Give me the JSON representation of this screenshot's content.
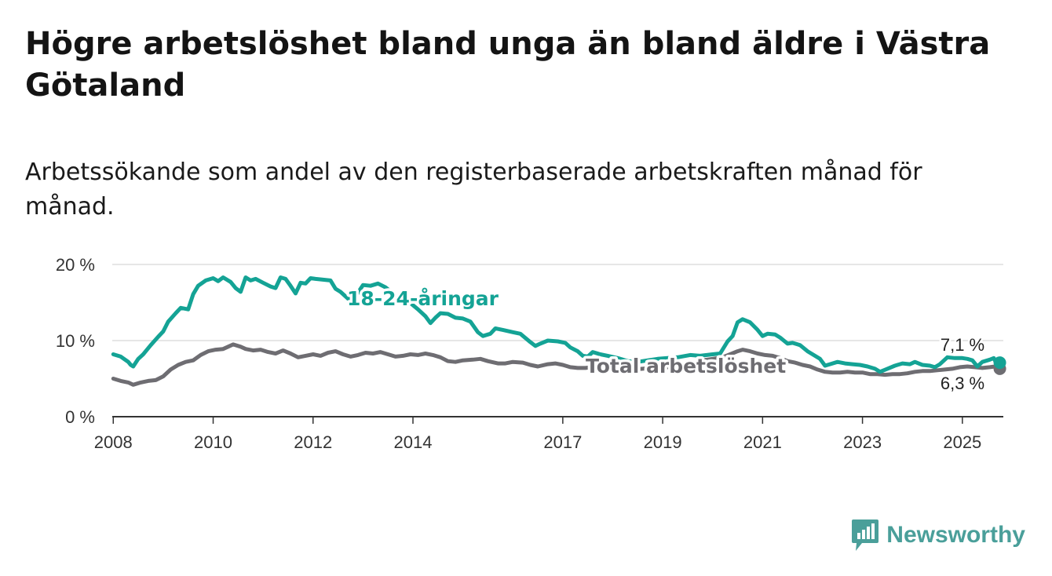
{
  "header": {
    "title": "Högre arbetslöshet bland unga än bland äldre i Västra Götaland",
    "subtitle": "Arbetssökande som andel av den registerbaserade arbetskraften månad för månad."
  },
  "brand": {
    "name": "Newsworthy",
    "icon": "newsworthy-logo-icon",
    "color": "#4a9f9a"
  },
  "chart_data": {
    "type": "line",
    "title": "Högre arbetslöshet bland unga än bland äldre i Västra Götaland",
    "subtitle": "Arbetssökande som andel av den registerbaserade arbetskraften månad för månad.",
    "xlabel": "",
    "ylabel": "",
    "xlim": [
      2007.98,
      2025.82
    ],
    "ylim": [
      0,
      20
    ],
    "x_ticks": [
      2008,
      2010,
      2012,
      2014,
      2017,
      2019,
      2021,
      2023,
      2025
    ],
    "x_tick_labels": [
      "2008",
      "2010",
      "2012",
      "2014",
      "2017",
      "2019",
      "2021",
      "2023",
      "2025"
    ],
    "y_ticks": [
      0,
      10,
      20
    ],
    "y_tick_labels": [
      "0 %",
      "10 %",
      "20 %"
    ],
    "grid": true,
    "series": [
      {
        "name": "18-24-åringar",
        "label": "18-24-åringar",
        "color": "#14a395",
        "end_label": "7,1 %",
        "points": [
          [
            2008.0,
            8.2
          ],
          [
            2008.15,
            7.9
          ],
          [
            2008.3,
            7.2
          ],
          [
            2008.35,
            6.8
          ],
          [
            2008.4,
            6.6
          ],
          [
            2008.5,
            7.6
          ],
          [
            2008.6,
            8.2
          ],
          [
            2008.75,
            9.4
          ],
          [
            2008.9,
            10.5
          ],
          [
            2009.0,
            11.2
          ],
          [
            2009.1,
            12.5
          ],
          [
            2009.25,
            13.6
          ],
          [
            2009.35,
            14.3
          ],
          [
            2009.5,
            14.1
          ],
          [
            2009.6,
            16.1
          ],
          [
            2009.7,
            17.2
          ],
          [
            2009.85,
            17.9
          ],
          [
            2010.0,
            18.2
          ],
          [
            2010.1,
            17.8
          ],
          [
            2010.2,
            18.3
          ],
          [
            2010.35,
            17.7
          ],
          [
            2010.45,
            16.9
          ],
          [
            2010.55,
            16.4
          ],
          [
            2010.65,
            18.3
          ],
          [
            2010.75,
            17.9
          ],
          [
            2010.85,
            18.1
          ],
          [
            2011.0,
            17.6
          ],
          [
            2011.15,
            17.1
          ],
          [
            2011.25,
            16.9
          ],
          [
            2011.35,
            18.3
          ],
          [
            2011.45,
            18.1
          ],
          [
            2011.55,
            17.2
          ],
          [
            2011.65,
            16.2
          ],
          [
            2011.75,
            17.6
          ],
          [
            2011.85,
            17.5
          ],
          [
            2011.95,
            18.2
          ],
          [
            2012.05,
            18.1
          ],
          [
            2012.2,
            18.0
          ],
          [
            2012.35,
            17.9
          ],
          [
            2012.45,
            16.8
          ],
          [
            2012.55,
            16.4
          ],
          [
            2012.7,
            15.5
          ],
          [
            2012.85,
            15.8
          ],
          [
            2013.0,
            17.3
          ],
          [
            2013.15,
            17.2
          ],
          [
            2013.3,
            17.5
          ],
          [
            2013.45,
            17.0
          ],
          [
            2013.6,
            16.2
          ],
          [
            2013.75,
            15.0
          ],
          [
            2013.9,
            15.2
          ],
          [
            2014.1,
            14.1
          ],
          [
            2014.25,
            13.2
          ],
          [
            2014.35,
            12.3
          ],
          [
            2014.45,
            13.0
          ],
          [
            2014.55,
            13.6
          ],
          [
            2014.7,
            13.5
          ],
          [
            2014.85,
            13.0
          ],
          [
            2015.0,
            12.9
          ],
          [
            2015.15,
            12.5
          ],
          [
            2015.3,
            11.1
          ],
          [
            2015.4,
            10.6
          ],
          [
            2015.55,
            10.9
          ],
          [
            2015.65,
            11.6
          ],
          [
            2015.8,
            11.4
          ],
          [
            2016.0,
            11.1
          ],
          [
            2016.15,
            10.9
          ],
          [
            2016.35,
            9.8
          ],
          [
            2016.45,
            9.3
          ],
          [
            2016.55,
            9.6
          ],
          [
            2016.7,
            10.0
          ],
          [
            2016.9,
            9.9
          ],
          [
            2017.05,
            9.7
          ],
          [
            2017.15,
            9.1
          ],
          [
            2017.3,
            8.6
          ],
          [
            2017.4,
            8.0
          ],
          [
            2017.5,
            7.9
          ],
          [
            2017.6,
            8.5
          ],
          [
            2017.75,
            8.2
          ],
          [
            2017.9,
            8.0
          ],
          [
            2018.1,
            7.7
          ],
          [
            2018.3,
            7.3
          ],
          [
            2018.5,
            7.2
          ],
          [
            2018.7,
            7.4
          ],
          [
            2018.9,
            7.6
          ],
          [
            2019.1,
            7.7
          ],
          [
            2019.3,
            7.8
          ],
          [
            2019.55,
            8.1
          ],
          [
            2019.75,
            8.0
          ],
          [
            2020.0,
            8.2
          ],
          [
            2020.15,
            8.3
          ],
          [
            2020.3,
            9.9
          ],
          [
            2020.4,
            10.6
          ],
          [
            2020.5,
            12.4
          ],
          [
            2020.6,
            12.8
          ],
          [
            2020.75,
            12.4
          ],
          [
            2020.9,
            11.4
          ],
          [
            2021.0,
            10.6
          ],
          [
            2021.1,
            10.9
          ],
          [
            2021.25,
            10.8
          ],
          [
            2021.35,
            10.4
          ],
          [
            2021.5,
            9.6
          ],
          [
            2021.6,
            9.7
          ],
          [
            2021.75,
            9.4
          ],
          [
            2021.9,
            8.6
          ],
          [
            2022.05,
            8.0
          ],
          [
            2022.15,
            7.6
          ],
          [
            2022.25,
            6.7
          ],
          [
            2022.35,
            6.9
          ],
          [
            2022.5,
            7.2
          ],
          [
            2022.65,
            7.0
          ],
          [
            2022.8,
            6.9
          ],
          [
            2022.95,
            6.8
          ],
          [
            2023.1,
            6.6
          ],
          [
            2023.25,
            6.3
          ],
          [
            2023.35,
            5.9
          ],
          [
            2023.5,
            6.3
          ],
          [
            2023.65,
            6.7
          ],
          [
            2023.8,
            7.0
          ],
          [
            2023.95,
            6.9
          ],
          [
            2024.05,
            7.2
          ],
          [
            2024.2,
            6.8
          ],
          [
            2024.35,
            6.7
          ],
          [
            2024.45,
            6.5
          ],
          [
            2024.55,
            6.9
          ],
          [
            2024.7,
            7.8
          ],
          [
            2024.85,
            7.7
          ],
          [
            2025.0,
            7.7
          ],
          [
            2025.1,
            7.6
          ],
          [
            2025.2,
            7.4
          ],
          [
            2025.3,
            6.6
          ],
          [
            2025.4,
            7.2
          ],
          [
            2025.55,
            7.5
          ],
          [
            2025.63,
            7.7
          ],
          [
            2025.7,
            6.7
          ],
          [
            2025.75,
            7.1
          ]
        ]
      },
      {
        "name": "Total arbetslöshet",
        "label": "Total arbetslöshet",
        "color": "#6e6d72",
        "end_label": "6,3 %",
        "points": [
          [
            2008.0,
            5.0
          ],
          [
            2008.15,
            4.7
          ],
          [
            2008.3,
            4.5
          ],
          [
            2008.4,
            4.2
          ],
          [
            2008.55,
            4.5
          ],
          [
            2008.7,
            4.7
          ],
          [
            2008.85,
            4.8
          ],
          [
            2009.0,
            5.3
          ],
          [
            2009.15,
            6.2
          ],
          [
            2009.3,
            6.8
          ],
          [
            2009.45,
            7.2
          ],
          [
            2009.6,
            7.4
          ],
          [
            2009.75,
            8.1
          ],
          [
            2009.9,
            8.6
          ],
          [
            2010.05,
            8.8
          ],
          [
            2010.2,
            8.9
          ],
          [
            2010.3,
            9.2
          ],
          [
            2010.4,
            9.5
          ],
          [
            2010.55,
            9.2
          ],
          [
            2010.65,
            8.9
          ],
          [
            2010.8,
            8.7
          ],
          [
            2010.95,
            8.8
          ],
          [
            2011.1,
            8.5
          ],
          [
            2011.25,
            8.3
          ],
          [
            2011.4,
            8.7
          ],
          [
            2011.55,
            8.3
          ],
          [
            2011.7,
            7.8
          ],
          [
            2011.85,
            8.0
          ],
          [
            2012.0,
            8.2
          ],
          [
            2012.15,
            8.0
          ],
          [
            2012.3,
            8.4
          ],
          [
            2012.45,
            8.6
          ],
          [
            2012.6,
            8.2
          ],
          [
            2012.75,
            7.9
          ],
          [
            2012.9,
            8.1
          ],
          [
            2013.05,
            8.4
          ],
          [
            2013.2,
            8.3
          ],
          [
            2013.35,
            8.5
          ],
          [
            2013.5,
            8.2
          ],
          [
            2013.65,
            7.9
          ],
          [
            2013.8,
            8.0
          ],
          [
            2013.95,
            8.2
          ],
          [
            2014.1,
            8.1
          ],
          [
            2014.25,
            8.3
          ],
          [
            2014.4,
            8.1
          ],
          [
            2014.55,
            7.8
          ],
          [
            2014.7,
            7.3
          ],
          [
            2014.85,
            7.2
          ],
          [
            2015.0,
            7.4
          ],
          [
            2015.2,
            7.5
          ],
          [
            2015.35,
            7.6
          ],
          [
            2015.5,
            7.3
          ],
          [
            2015.7,
            7.0
          ],
          [
            2015.85,
            7.0
          ],
          [
            2016.0,
            7.2
          ],
          [
            2016.2,
            7.1
          ],
          [
            2016.35,
            6.8
          ],
          [
            2016.5,
            6.6
          ],
          [
            2016.7,
            6.9
          ],
          [
            2016.85,
            7.0
          ],
          [
            2017.0,
            6.8
          ],
          [
            2017.15,
            6.5
          ],
          [
            2017.3,
            6.4
          ],
          [
            2017.45,
            6.4
          ],
          [
            2017.6,
            6.5
          ],
          [
            2017.8,
            6.4
          ],
          [
            2018.0,
            6.3
          ],
          [
            2018.2,
            6.2
          ],
          [
            2018.4,
            6.2
          ],
          [
            2018.6,
            6.3
          ],
          [
            2018.8,
            6.4
          ],
          [
            2019.0,
            6.4
          ],
          [
            2019.2,
            6.6
          ],
          [
            2019.4,
            6.8
          ],
          [
            2019.6,
            7.0
          ],
          [
            2019.8,
            7.4
          ],
          [
            2020.0,
            7.6
          ],
          [
            2020.2,
            7.8
          ],
          [
            2020.35,
            8.2
          ],
          [
            2020.5,
            8.6
          ],
          [
            2020.6,
            8.8
          ],
          [
            2020.75,
            8.6
          ],
          [
            2020.9,
            8.3
          ],
          [
            2021.05,
            8.1
          ],
          [
            2021.2,
            8.0
          ],
          [
            2021.35,
            7.7
          ],
          [
            2021.5,
            7.3
          ],
          [
            2021.65,
            7.1
          ],
          [
            2021.8,
            6.8
          ],
          [
            2021.95,
            6.6
          ],
          [
            2022.1,
            6.2
          ],
          [
            2022.25,
            5.9
          ],
          [
            2022.4,
            5.8
          ],
          [
            2022.55,
            5.8
          ],
          [
            2022.7,
            5.9
          ],
          [
            2022.85,
            5.8
          ],
          [
            2023.0,
            5.8
          ],
          [
            2023.15,
            5.6
          ],
          [
            2023.3,
            5.6
          ],
          [
            2023.45,
            5.5
          ],
          [
            2023.6,
            5.6
          ],
          [
            2023.75,
            5.6
          ],
          [
            2023.9,
            5.7
          ],
          [
            2024.05,
            5.9
          ],
          [
            2024.2,
            6.0
          ],
          [
            2024.35,
            6.0
          ],
          [
            2024.5,
            6.1
          ],
          [
            2024.65,
            6.2
          ],
          [
            2024.8,
            6.3
          ],
          [
            2024.95,
            6.5
          ],
          [
            2025.1,
            6.6
          ],
          [
            2025.25,
            6.5
          ],
          [
            2025.4,
            6.4
          ],
          [
            2025.55,
            6.5
          ],
          [
            2025.65,
            6.6
          ],
          [
            2025.75,
            6.3
          ]
        ]
      }
    ]
  }
}
